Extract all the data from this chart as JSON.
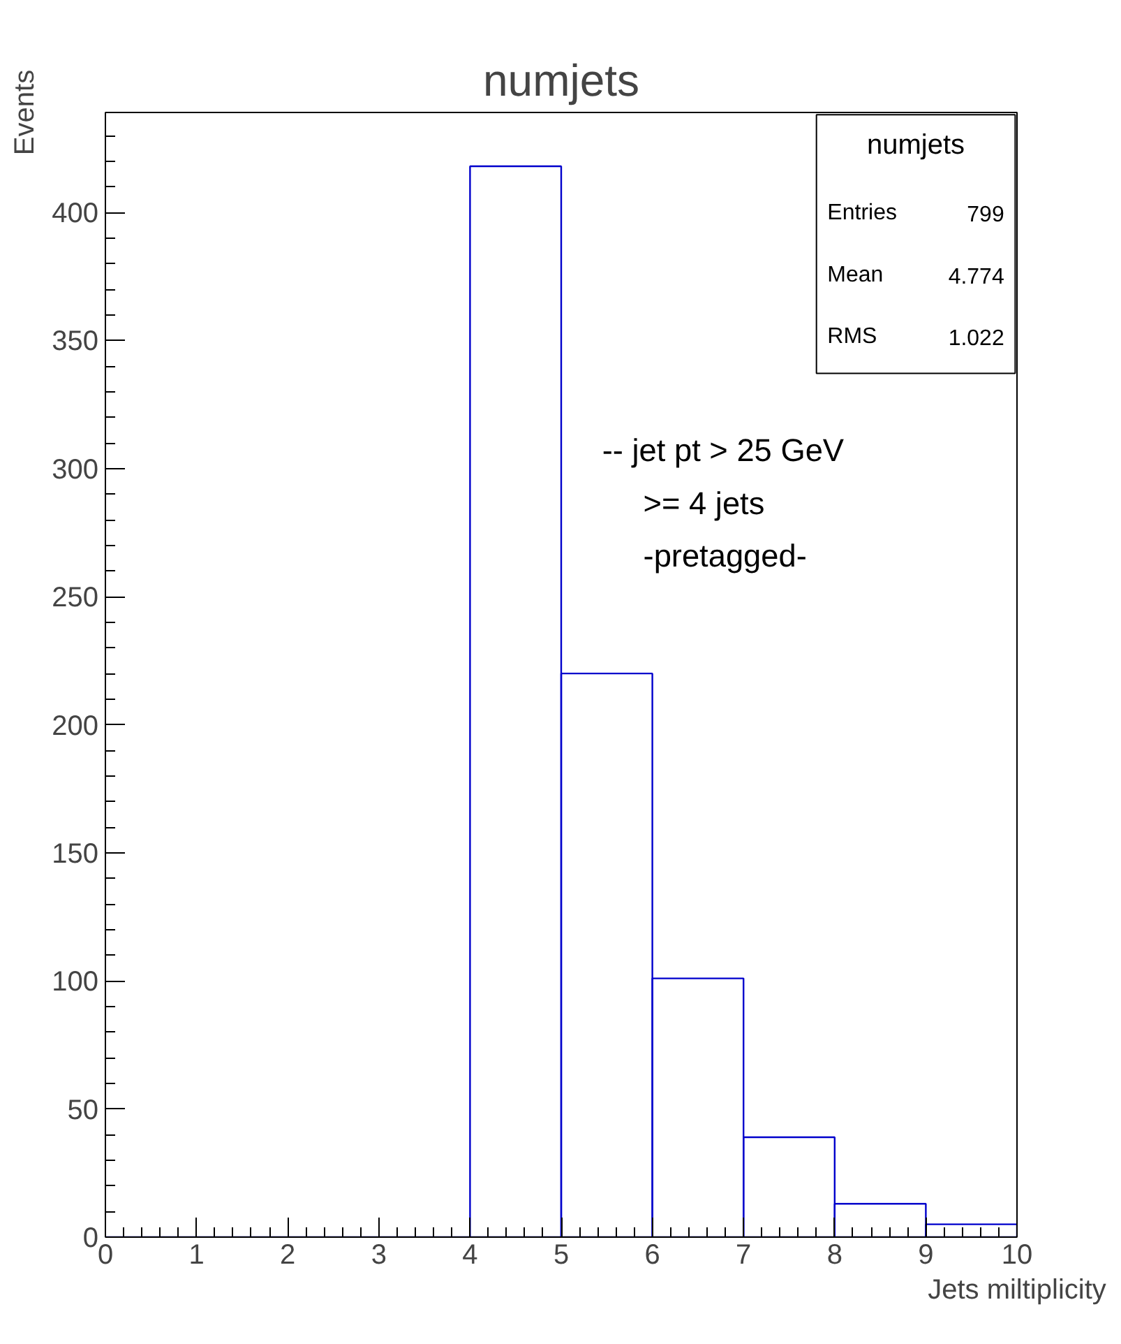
{
  "chart_data": {
    "type": "histogram",
    "title": "numjets",
    "xlabel": "Jets miltiplicity",
    "ylabel": "Events",
    "bins": [
      0,
      1,
      2,
      3,
      4,
      5,
      6,
      7,
      8,
      9,
      10
    ],
    "values": [
      0,
      0,
      0,
      0,
      418,
      220,
      101,
      39,
      13,
      5
    ],
    "color": "#0000cc",
    "xlim": [
      0,
      10
    ],
    "ylim": [
      0,
      439
    ],
    "xticks": [
      0,
      1,
      2,
      3,
      4,
      5,
      6,
      7,
      8,
      9,
      10
    ],
    "yticks": [
      0,
      50,
      100,
      150,
      200,
      250,
      300,
      350,
      400
    ],
    "grid": false,
    "annotations": [
      "numjets",
      "Entries 799",
      "Mean 4.774",
      "RMS 1.022",
      "-- jet pt > 25 GeV",
      ">= 4 jets",
      "-pretagged-"
    ]
  }
}
